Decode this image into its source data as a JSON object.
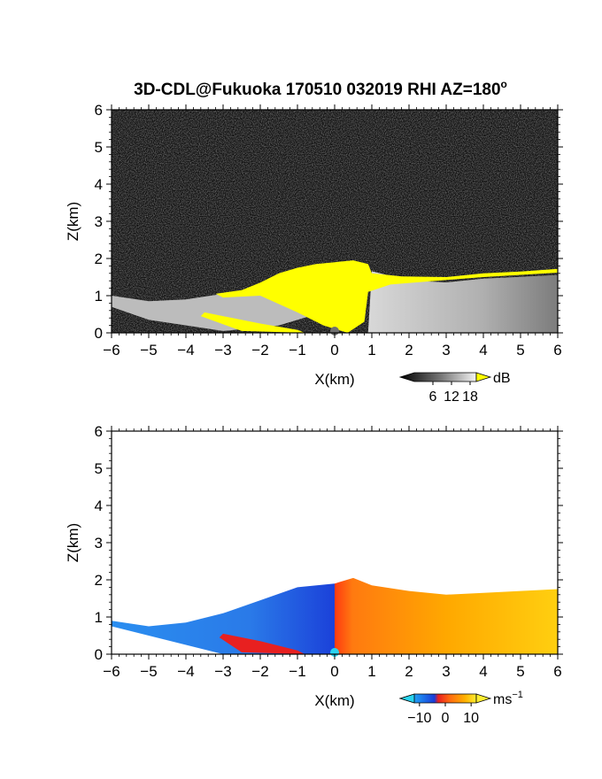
{
  "title": "3D-CDL@Fukuoka 170510 032019 RHI AZ=180",
  "title_superscript": "o",
  "chart_data": [
    {
      "type": "heatmap",
      "name": "backscatter",
      "xlabel": "X(km)",
      "ylabel": "Z(km)",
      "xlim": [
        -6,
        6
      ],
      "ylim": [
        0,
        6
      ],
      "x_ticks": [
        -6,
        -5,
        -4,
        -3,
        -2,
        -1,
        0,
        1,
        2,
        3,
        4,
        5,
        6
      ],
      "y_ticks": [
        0,
        1,
        2,
        3,
        4,
        5,
        6
      ],
      "colorbar": {
        "unit": "dB",
        "ticks": [
          6,
          12,
          18
        ],
        "range": [
          0,
          20
        ],
        "saturation_color": "#ffff00"
      },
      "cloud_top_profile": [
        {
          "x": -6.0,
          "z": 1.0
        },
        {
          "x": -5.0,
          "z": 0.85
        },
        {
          "x": -4.0,
          "z": 0.9
        },
        {
          "x": -3.0,
          "z": 1.05
        },
        {
          "x": -2.5,
          "z": 1.15
        },
        {
          "x": -2.0,
          "z": 1.35
        },
        {
          "x": -1.5,
          "z": 1.6
        },
        {
          "x": -1.0,
          "z": 1.75
        },
        {
          "x": -0.5,
          "z": 1.85
        },
        {
          "x": 0.0,
          "z": 1.9
        },
        {
          "x": 0.5,
          "z": 1.95
        },
        {
          "x": 1.0,
          "z": 1.8
        },
        {
          "x": 2.0,
          "z": 1.55
        },
        {
          "x": 3.0,
          "z": 1.5
        },
        {
          "x": 4.0,
          "z": 1.6
        },
        {
          "x": 5.0,
          "z": 1.65
        },
        {
          "x": 6.0,
          "z": 1.7
        }
      ]
    },
    {
      "type": "heatmap",
      "name": "doppler_velocity",
      "xlabel": "X(km)",
      "ylabel": "Z(km)",
      "xlim": [
        -6,
        6
      ],
      "ylim": [
        0,
        6
      ],
      "x_ticks": [
        -6,
        -5,
        -4,
        -3,
        -2,
        -1,
        0,
        1,
        2,
        3,
        4,
        5,
        6
      ],
      "y_ticks": [
        0,
        1,
        2,
        3,
        4,
        5,
        6
      ],
      "colorbar": {
        "unit": "ms",
        "unit_superscript": "−1",
        "tick_labels": [
          "−10",
          "0",
          "10"
        ],
        "ticks": [
          -10,
          0,
          10
        ],
        "range": [
          -12,
          12
        ]
      },
      "data_top_profile": [
        {
          "x": -6.0,
          "z": 0.9
        },
        {
          "x": -5.0,
          "z": 0.75
        },
        {
          "x": -4.0,
          "z": 0.85
        },
        {
          "x": -3.0,
          "z": 1.1
        },
        {
          "x": -2.0,
          "z": 1.45
        },
        {
          "x": -1.0,
          "z": 1.8
        },
        {
          "x": 0.0,
          "z": 1.9
        },
        {
          "x": 0.5,
          "z": 2.05
        },
        {
          "x": 1.0,
          "z": 1.85
        },
        {
          "x": 2.0,
          "z": 1.7
        },
        {
          "x": 3.0,
          "z": 1.6
        },
        {
          "x": 4.0,
          "z": 1.65
        },
        {
          "x": 5.0,
          "z": 1.7
        },
        {
          "x": 6.0,
          "z": 1.75
        }
      ]
    }
  ]
}
